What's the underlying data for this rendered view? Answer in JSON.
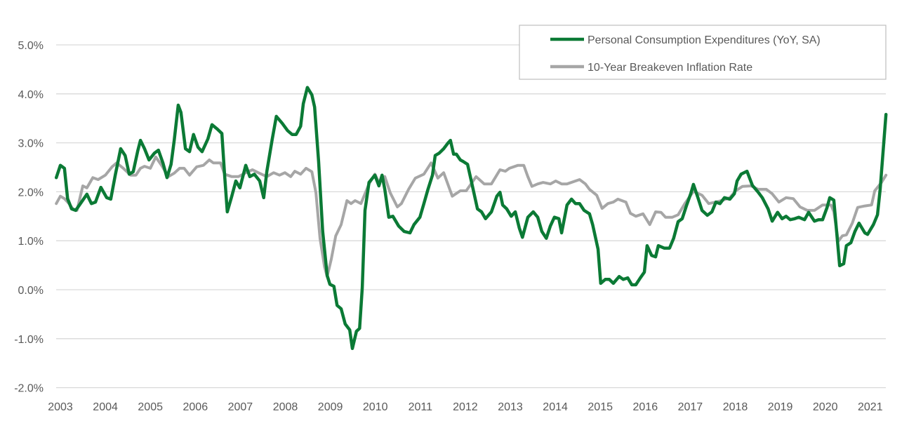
{
  "chart_data": {
    "type": "line",
    "title": "",
    "xlabel": "",
    "ylabel": "",
    "ylim": [
      -2.0,
      5.0
    ],
    "xlim": [
      2003,
      2021.35
    ],
    "y_ticks": [
      "-2.0%",
      "-1.0%",
      "0.0%",
      "1.0%",
      "2.0%",
      "3.0%",
      "4.0%",
      "5.0%"
    ],
    "y_tick_values": [
      -2,
      -1,
      0,
      1,
      2,
      3,
      4,
      5
    ],
    "x_ticks": [
      "2003",
      "2004",
      "2005",
      "2006",
      "2007",
      "2008",
      "2009",
      "2010",
      "2011",
      "2012",
      "2013",
      "2014",
      "2015",
      "2016",
      "2017",
      "2018",
      "2019",
      "2020",
      "2021"
    ],
    "grid": "horizontal",
    "legend_position": "top-right",
    "series": [
      {
        "name": "Personal Consumption Expenditures (YoY, SA)",
        "color": "#0b7a35",
        "x": [
          2002.91,
          2003.0,
          2003.09,
          2003.16,
          2003.25,
          2003.34,
          2003.5,
          2003.59,
          2003.69,
          2003.78,
          2003.9,
          2004.03,
          2004.12,
          2004.22,
          2004.34,
          2004.44,
          2004.53,
          2004.62,
          2004.72,
          2004.78,
          2004.87,
          2004.97,
          2005.09,
          2005.18,
          2005.28,
          2005.37,
          2005.46,
          2005.53,
          2005.62,
          2005.68,
          2005.78,
          2005.87,
          2005.96,
          2006.06,
          2006.15,
          2006.28,
          2006.37,
          2006.49,
          2006.59,
          2006.65,
          2006.71,
          2006.81,
          2006.9,
          2006.99,
          2007.12,
          2007.21,
          2007.31,
          2007.43,
          2007.52,
          2007.59,
          2007.71,
          2007.8,
          2007.93,
          2008.05,
          2008.15,
          2008.24,
          2008.34,
          2008.4,
          2008.49,
          2008.59,
          2008.65,
          2008.74,
          2008.83,
          2008.93,
          2008.99,
          2009.08,
          2009.15,
          2009.24,
          2009.33,
          2009.43,
          2009.49,
          2009.58,
          2009.65,
          2009.71,
          2009.77,
          2009.86,
          2009.99,
          2010.08,
          2010.15,
          2010.21,
          2010.3,
          2010.39,
          2010.52,
          2010.64,
          2010.77,
          2010.86,
          2010.99,
          2011.08,
          2011.17,
          2011.27,
          2011.33,
          2011.42,
          2011.52,
          2011.61,
          2011.67,
          2011.74,
          2011.8,
          2011.89,
          2011.95,
          2012.05,
          2012.14,
          2012.27,
          2012.36,
          2012.45,
          2012.58,
          2012.7,
          2012.77,
          2012.83,
          2012.92,
          2013.02,
          2013.11,
          2013.2,
          2013.27,
          2013.39,
          2013.51,
          2013.61,
          2013.7,
          2013.8,
          2013.89,
          2013.98,
          2014.08,
          2014.14,
          2014.26,
          2014.36,
          2014.45,
          2014.54,
          2014.64,
          2014.76,
          2014.83,
          2014.95,
          2015.01,
          2015.11,
          2015.2,
          2015.29,
          2015.42,
          2015.51,
          2015.61,
          2015.7,
          2015.79,
          2015.89,
          2015.98,
          2016.04,
          2016.14,
          2016.23,
          2016.29,
          2016.42,
          2016.54,
          2016.63,
          2016.73,
          2016.82,
          2016.92,
          2017.01,
          2017.07,
          2017.17,
          2017.26,
          2017.38,
          2017.48,
          2017.57,
          2017.66,
          2017.76,
          2017.88,
          2017.98,
          2018.04,
          2018.13,
          2018.26,
          2018.38,
          2018.51,
          2018.6,
          2018.73,
          2018.82,
          2018.94,
          2019.04,
          2019.13,
          2019.22,
          2019.32,
          2019.41,
          2019.54,
          2019.63,
          2019.76,
          2019.85,
          2019.94,
          2020.04,
          2020.1,
          2020.19,
          2020.32,
          2020.41,
          2020.47,
          2020.57,
          2020.66,
          2020.75,
          2020.88,
          2020.94,
          2021.07,
          2021.16,
          2021.22,
          2021.35
        ],
        "y": [
          2.29,
          2.54,
          2.48,
          1.86,
          1.65,
          1.62,
          1.83,
          1.95,
          1.76,
          1.79,
          2.09,
          1.88,
          1.85,
          2.34,
          2.88,
          2.74,
          2.36,
          2.41,
          2.84,
          3.05,
          2.88,
          2.65,
          2.79,
          2.85,
          2.59,
          2.29,
          2.56,
          3.05,
          3.77,
          3.62,
          2.88,
          2.82,
          3.17,
          2.91,
          2.82,
          3.08,
          3.37,
          3.28,
          3.19,
          2.34,
          1.59,
          1.91,
          2.22,
          2.08,
          2.54,
          2.31,
          2.36,
          2.22,
          1.88,
          2.42,
          3.08,
          3.54,
          3.4,
          3.25,
          3.17,
          3.17,
          3.34,
          3.8,
          4.13,
          3.98,
          3.73,
          2.62,
          1.19,
          0.29,
          0.11,
          0.07,
          -0.32,
          -0.39,
          -0.7,
          -0.82,
          -1.2,
          -0.85,
          -0.79,
          0.04,
          1.62,
          2.19,
          2.34,
          2.12,
          2.34,
          2.05,
          1.48,
          1.5,
          1.3,
          1.19,
          1.16,
          1.33,
          1.48,
          1.76,
          2.05,
          2.34,
          2.74,
          2.79,
          2.88,
          2.99,
          3.05,
          2.77,
          2.77,
          2.65,
          2.62,
          2.56,
          2.19,
          1.65,
          1.59,
          1.45,
          1.59,
          1.91,
          1.99,
          1.73,
          1.65,
          1.5,
          1.59,
          1.26,
          1.07,
          1.48,
          1.59,
          1.48,
          1.19,
          1.05,
          1.3,
          1.48,
          1.45,
          1.16,
          1.73,
          1.85,
          1.76,
          1.76,
          1.62,
          1.55,
          1.33,
          0.83,
          0.13,
          0.21,
          0.21,
          0.13,
          0.27,
          0.21,
          0.24,
          0.1,
          0.1,
          0.24,
          0.36,
          0.9,
          0.7,
          0.67,
          0.9,
          0.85,
          0.85,
          1.05,
          1.39,
          1.45,
          1.73,
          1.96,
          2.15,
          1.88,
          1.62,
          1.52,
          1.59,
          1.79,
          1.76,
          1.88,
          1.85,
          1.96,
          2.22,
          2.36,
          2.42,
          2.13,
          1.99,
          1.88,
          1.65,
          1.4,
          1.58,
          1.45,
          1.5,
          1.43,
          1.45,
          1.48,
          1.43,
          1.58,
          1.4,
          1.43,
          1.43,
          1.68,
          1.88,
          1.83,
          0.49,
          0.53,
          0.9,
          0.96,
          1.19,
          1.36,
          1.16,
          1.13,
          1.33,
          1.53,
          2.05,
          3.58
        ]
      },
      {
        "name": "10-Year Breakeven Inflation Rate",
        "color": "#a6a6a6",
        "x": [
          2002.91,
          2003.0,
          2003.09,
          2003.19,
          2003.28,
          2003.37,
          2003.5,
          2003.59,
          2003.72,
          2003.84,
          2004.0,
          2004.15,
          2004.25,
          2004.4,
          2004.56,
          2004.68,
          2004.78,
          2004.87,
          2005.0,
          2005.12,
          2005.25,
          2005.4,
          2005.53,
          2005.65,
          2005.75,
          2005.87,
          2006.03,
          2006.18,
          2006.31,
          2006.4,
          2006.56,
          2006.65,
          2006.81,
          2006.96,
          2007.12,
          2007.27,
          2007.4,
          2007.59,
          2007.74,
          2007.87,
          2007.99,
          2008.12,
          2008.21,
          2008.34,
          2008.46,
          2008.59,
          2008.68,
          2008.77,
          2008.87,
          2008.93,
          2009.02,
          2009.12,
          2009.24,
          2009.37,
          2009.46,
          2009.55,
          2009.68,
          2009.86,
          2009.99,
          2010.08,
          2010.21,
          2010.33,
          2010.49,
          2010.58,
          2010.74,
          2010.89,
          2011.08,
          2011.24,
          2011.39,
          2011.52,
          2011.71,
          2011.89,
          2012.02,
          2012.24,
          2012.42,
          2012.58,
          2012.77,
          2012.89,
          2012.98,
          2013.17,
          2013.3,
          2013.39,
          2013.48,
          2013.61,
          2013.73,
          2013.89,
          2014.01,
          2014.14,
          2014.26,
          2014.45,
          2014.54,
          2014.67,
          2014.76,
          2014.92,
          2015.04,
          2015.17,
          2015.29,
          2015.39,
          2015.57,
          2015.67,
          2015.79,
          2015.95,
          2016.1,
          2016.23,
          2016.35,
          2016.45,
          2016.6,
          2016.73,
          2016.88,
          2017.07,
          2017.26,
          2017.41,
          2017.57,
          2017.73,
          2017.88,
          2018.01,
          2018.16,
          2018.35,
          2018.51,
          2018.69,
          2018.82,
          2018.97,
          2019.13,
          2019.29,
          2019.44,
          2019.6,
          2019.76,
          2019.94,
          2020.13,
          2020.19,
          2020.29,
          2020.38,
          2020.47,
          2020.6,
          2020.72,
          2020.88,
          2021.03,
          2021.1,
          2021.25,
          2021.35
        ],
        "y": [
          1.76,
          1.91,
          1.86,
          1.76,
          1.65,
          1.62,
          2.12,
          2.08,
          2.29,
          2.25,
          2.34,
          2.51,
          2.59,
          2.48,
          2.34,
          2.34,
          2.48,
          2.52,
          2.48,
          2.71,
          2.54,
          2.31,
          2.38,
          2.48,
          2.48,
          2.34,
          2.51,
          2.54,
          2.65,
          2.59,
          2.59,
          2.36,
          2.31,
          2.31,
          2.39,
          2.45,
          2.39,
          2.31,
          2.39,
          2.34,
          2.39,
          2.31,
          2.42,
          2.36,
          2.48,
          2.41,
          1.98,
          1.05,
          0.47,
          0.27,
          0.62,
          1.1,
          1.33,
          1.82,
          1.76,
          1.82,
          1.76,
          2.16,
          2.36,
          2.19,
          2.31,
          1.98,
          1.69,
          1.76,
          2.05,
          2.28,
          2.36,
          2.59,
          2.28,
          2.39,
          1.91,
          2.02,
          2.02,
          2.31,
          2.16,
          2.16,
          2.45,
          2.42,
          2.48,
          2.54,
          2.54,
          2.31,
          2.11,
          2.16,
          2.19,
          2.16,
          2.22,
          2.16,
          2.16,
          2.22,
          2.25,
          2.16,
          2.05,
          1.93,
          1.66,
          1.76,
          1.79,
          1.85,
          1.79,
          1.56,
          1.5,
          1.55,
          1.33,
          1.59,
          1.58,
          1.48,
          1.48,
          1.53,
          1.76,
          2.01,
          1.93,
          1.76,
          1.79,
          1.83,
          1.88,
          2.02,
          2.11,
          2.12,
          2.05,
          2.05,
          1.96,
          1.79,
          1.88,
          1.86,
          1.69,
          1.62,
          1.62,
          1.73,
          1.73,
          1.59,
          0.99,
          1.1,
          1.12,
          1.36,
          1.68,
          1.71,
          1.73,
          2.02,
          2.19,
          2.34
        ]
      }
    ]
  }
}
